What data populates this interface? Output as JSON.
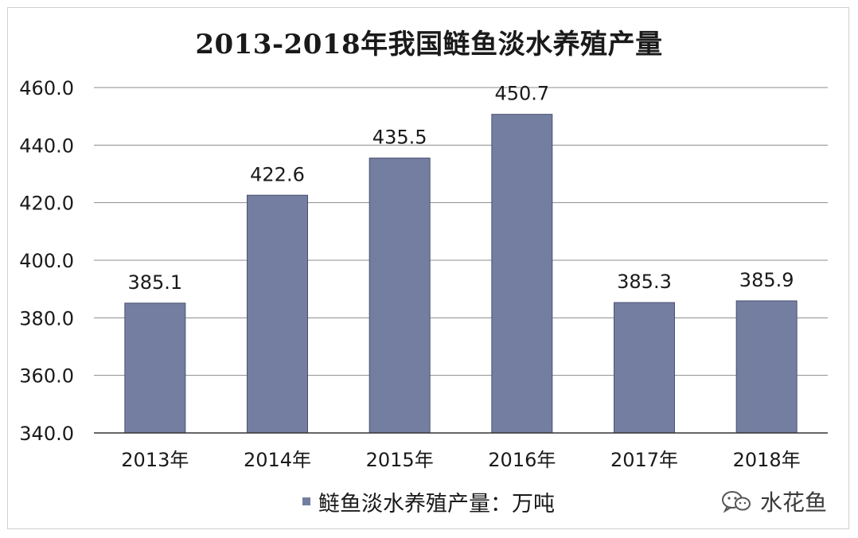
{
  "chart_data": {
    "type": "bar",
    "title": "2013-2018年我国鲢鱼淡水养殖产量",
    "categories": [
      "2013年",
      "2014年",
      "2015年",
      "2016年",
      "2017年",
      "2018年"
    ],
    "series": [
      {
        "name": "鲢鱼淡水养殖产量：万吨",
        "values": [
          385.1,
          422.6,
          435.5,
          450.7,
          385.3,
          385.9
        ]
      }
    ],
    "data_labels": [
      "385.1",
      "422.6",
      "435.5",
      "450.7",
      "385.3",
      "385.9"
    ],
    "ylim": [
      340,
      460
    ],
    "yticks": [
      340,
      360,
      380,
      400,
      420,
      440,
      460
    ],
    "ytick_labels": [
      "340.0",
      "360.0",
      "380.0",
      "400.0",
      "420.0",
      "440.0",
      "460.0"
    ],
    "grid": true,
    "legend_position": "bottom",
    "bar_color": "#737ea0"
  },
  "watermark": {
    "icon": "wechat-icon",
    "text": "水花鱼"
  }
}
